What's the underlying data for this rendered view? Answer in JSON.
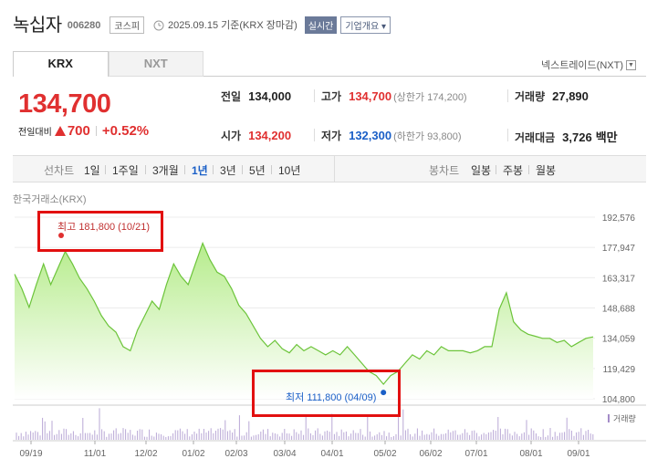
{
  "header": {
    "stock_name": "녹십자",
    "stock_code": "006280",
    "market": "코스피",
    "date_text": "2025.09.15 기준(KRX 장마감)",
    "realtime_badge": "실시간",
    "company_overview_button": "기업개요"
  },
  "tabs": [
    {
      "label": "KRX",
      "active": true
    },
    {
      "label": "NXT",
      "active": false
    }
  ],
  "nxt_link": "넥스트레이드(NXT)",
  "quote": {
    "price": "134,700",
    "change_label": "전일대비",
    "change_amount": "700",
    "change_percent": "+0.52%"
  },
  "stats": {
    "prev_close": {
      "label": "전일",
      "value": "134,000"
    },
    "high": {
      "label": "고가",
      "value": "134,700",
      "sub": "(상한가 174,200)"
    },
    "volume": {
      "label": "거래량",
      "value": "27,890"
    },
    "open": {
      "label": "시가",
      "value": "134,200"
    },
    "low": {
      "label": "저가",
      "value": "132,300",
      "sub": "(하한가 93,800)"
    },
    "trade_value": {
      "label": "거래대금",
      "value": "3,726",
      "unit": "백만"
    }
  },
  "period_bar": {
    "line_label": "선차트",
    "line_periods": [
      "1일",
      "1주일",
      "3개월",
      "1년",
      "3년",
      "5년",
      "10년"
    ],
    "active_period": "1년",
    "candle_label": "봉차트",
    "candle_periods": [
      "일봉",
      "주봉",
      "월봉"
    ]
  },
  "exchange_label": "한국거래소(KRX)",
  "colors": {
    "up_red": "#e03030",
    "down_blue": "#1a5fc7",
    "line_green": "#6cc43a",
    "fill_green": "#c8f0a6",
    "annotation_red": "#e21010"
  },
  "chart_data": {
    "type": "area",
    "y_tick_labels": [
      "192,576",
      "177,947",
      "163,317",
      "148,688",
      "134,059",
      "119,429",
      "104,800"
    ],
    "ylim": [
      104800,
      192576
    ],
    "x_tick_labels": [
      "09/19",
      "11/01",
      "12/02",
      "01/02",
      "02/03",
      "03/04",
      "04/01",
      "05/02",
      "06/02",
      "07/01",
      "08/01",
      "09/01"
    ],
    "series": [
      {
        "values": [
          165000,
          158000,
          149000,
          160000,
          170000,
          160000,
          168000,
          176000,
          170000,
          163000,
          158000,
          152000,
          145000,
          140000,
          137000,
          130000,
          128000,
          138000,
          145000,
          152000,
          148000,
          160000,
          170000,
          164000,
          160000,
          170000,
          180000,
          172000,
          166000,
          164000,
          158000,
          150000,
          146000,
          140000,
          134000,
          130000,
          133000,
          129000,
          127000,
          131000,
          128000,
          130000,
          128000,
          126000,
          128000,
          126000,
          130000,
          126000,
          122000,
          118000,
          116000,
          111800,
          116000,
          118000,
          122000,
          126000,
          124000,
          128000,
          126000,
          130000,
          128000,
          128000,
          128000,
          127000,
          128000,
          130000,
          130000,
          148000,
          156000,
          142000,
          138000,
          136000,
          135000,
          134000,
          134000,
          132000,
          133000,
          130000,
          132000,
          134000,
          134700
        ],
        "y_min": 104800,
        "y_max": 192576
      }
    ],
    "volume_label": "거래량",
    "high_annotation": {
      "label": "최고",
      "value": "181,800",
      "date": "(10/21)"
    },
    "low_annotation": {
      "label": "최저",
      "value": "111,800",
      "date": "(04/09)"
    }
  }
}
